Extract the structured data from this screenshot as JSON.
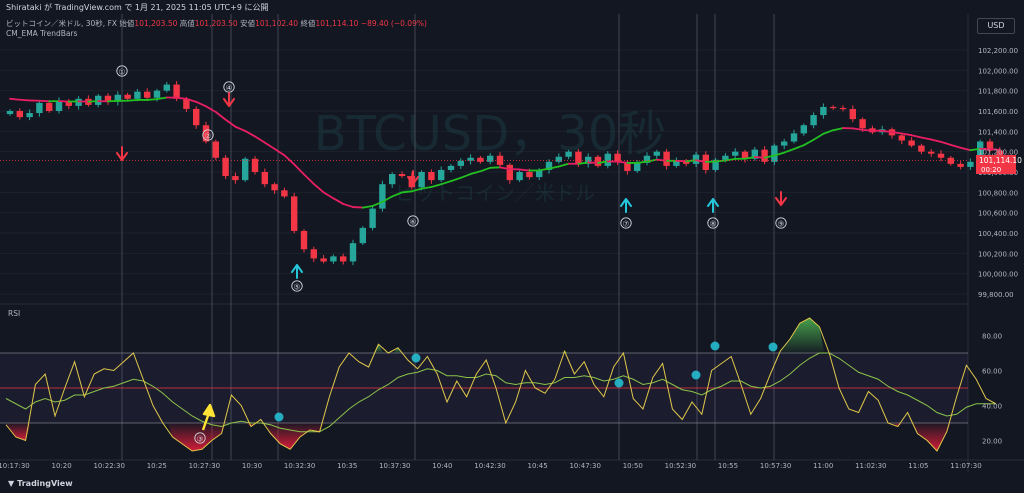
{
  "header": {
    "publish_line": "Shirataki が TradingView.com で 1月 21, 2025 11:05 UTC+9 に公開",
    "symbol": "ビットコイン／米ドル, 30秒, FX",
    "open_label": "始値",
    "open": "101,203.50",
    "high_label": "高値",
    "high": "101,203.50",
    "low_label": "安値",
    "low": "101,102.40",
    "close_label": "終値",
    "close": "101,114.10",
    "change": "−89.40 (−0.09%)",
    "indicator": "CM_EMA TrendBars",
    "currency_button": "USD",
    "rsi_label": "RSI",
    "brand": "TradingView"
  },
  "watermark": {
    "line1": "BTCUSD，30秒",
    "line2": "ビットコイン／米ドル"
  },
  "price_tag": {
    "price": "101,114.10",
    "countdown": "00:20"
  },
  "colors": {
    "up": "#26a69a",
    "down": "#f23645",
    "ema_up": "#22c021",
    "ema_down": "#e91e63",
    "rsi": "#e0c84a",
    "rsi_ma": "#8bc34a",
    "marker_blue": "#26c6da",
    "marker_yellow": "#ffe234"
  },
  "chart_data": [
    {
      "type": "candlestick",
      "title": "BTCUSD，30秒",
      "ylim": [
        99800,
        102200
      ],
      "y_ticks": [
        "102,200.00",
        "102,000.00",
        "101,800.00",
        "101,600.00",
        "101,400.00",
        "101,200.00",
        "101,000.00",
        "100,800.00",
        "100,600.00",
        "100,400.00",
        "100,200.00",
        "100,000.00",
        "99,800.00"
      ],
      "y_tick_values": [
        102200,
        102000,
        101800,
        101600,
        101400,
        101200,
        101000,
        100800,
        100600,
        100400,
        100200,
        100000,
        99800
      ],
      "x_ticks": [
        "10:17:30",
        "10:20",
        "10:22:30",
        "10:25",
        "10:27:30",
        "10:30",
        "10:32:30",
        "10:35",
        "10:37:30",
        "10:40",
        "10:42:30",
        "10:45",
        "10:47:30",
        "10:50",
        "10:52:30",
        "10:55",
        "10:57:30",
        "11:00",
        "11:02:30",
        "11:05",
        "11:07:30"
      ],
      "closes": [
        101600,
        101540,
        101580,
        101680,
        101600,
        101700,
        101650,
        101720,
        101660,
        101750,
        101690,
        101760,
        101720,
        101790,
        101730,
        101800,
        101860,
        101720,
        101620,
        101460,
        101300,
        101140,
        100960,
        100920,
        101130,
        101000,
        100880,
        100820,
        100760,
        100420,
        100240,
        100150,
        100120,
        100170,
        100120,
        100300,
        100450,
        100640,
        100880,
        100980,
        100960,
        100850,
        101000,
        100920,
        101020,
        101060,
        101110,
        101140,
        101100,
        101160,
        101070,
        100920,
        101000,
        100950,
        101020,
        101100,
        101150,
        101200,
        101080,
        101150,
        101060,
        101180,
        101100,
        101010,
        101090,
        101160,
        101200,
        101060,
        101110,
        101080,
        101170,
        101020,
        101120,
        101160,
        101200,
        101130,
        101220,
        101100,
        101260,
        101300,
        101380,
        101460,
        101560,
        101640,
        101630,
        101620,
        101520,
        101430,
        101390,
        101420,
        101360,
        101310,
        101260,
        101200,
        101180,
        101140,
        101080,
        101050,
        101100,
        101300,
        101210,
        101114.1
      ],
      "ema": [
        101720,
        101711,
        101704,
        101701,
        101696,
        101697,
        101693,
        101695,
        101692,
        101697,
        101695,
        101700,
        101701,
        101709,
        101709,
        101717,
        101733,
        101731,
        101719,
        101690,
        101646,
        101590,
        101515,
        101445,
        101404,
        101350,
        101289,
        101227,
        101165,
        101075,
        100977,
        100883,
        100800,
        100741,
        100686,
        100655,
        100650,
        100666,
        100706,
        100760,
        100799,
        100810,
        100836,
        100852,
        100880,
        100910,
        100943,
        100980,
        101007,
        101041,
        101046,
        101028,
        101025,
        101014,
        101016,
        101033,
        101054,
        101081,
        101080,
        101094,
        101089,
        101103,
        101102,
        101089,
        101089,
        101102,
        101122,
        101110,
        101110,
        101105,
        101116,
        101099,
        101103,
        101113,
        101129,
        101130,
        101147,
        101140,
        101162,
        101191,
        101226,
        101264,
        101317,
        101376,
        101411,
        101432,
        101429,
        101414,
        101407,
        101405,
        101392,
        101379,
        101362,
        101339,
        101320,
        101296,
        101267,
        101239,
        101214,
        101229,
        101226,
        101218
      ],
      "annotations": [
        {
          "label": "①",
          "direction": "none"
        },
        {
          "label": "②",
          "direction": "none"
        },
        {
          "label": "④",
          "direction": "down"
        },
        {
          "label": "⑤",
          "direction": "up"
        },
        {
          "label": "⑥",
          "direction": "down"
        },
        {
          "label": "⑦",
          "direction": "up"
        },
        {
          "label": "⑧",
          "direction": "up"
        },
        {
          "label": "⑨",
          "direction": "down"
        }
      ]
    },
    {
      "type": "line",
      "title": "RSI",
      "ylim": [
        10,
        90
      ],
      "y_ticks": [
        "80.00",
        "60.00",
        "40.00",
        "20.00"
      ],
      "y_tick_values": [
        80,
        60,
        40,
        20
      ],
      "bands": [
        30,
        70
      ],
      "midline": 50,
      "series": [
        {
          "values": [
            29,
            22,
            20,
            52,
            58,
            34,
            50,
            65,
            45,
            58,
            61,
            60,
            65,
            70,
            55,
            40,
            30,
            22,
            18,
            14,
            15,
            20,
            24,
            46,
            40,
            28,
            32,
            24,
            18,
            15,
            22,
            26,
            25,
            45,
            62,
            70,
            65,
            62,
            75,
            70,
            73,
            66,
            61,
            68,
            58,
            42,
            54,
            45,
            58,
            66,
            50,
            30,
            42,
            60,
            50,
            47,
            55,
            71,
            58,
            65,
            52,
            45,
            62,
            70,
            44,
            38,
            56,
            64,
            38,
            32,
            42,
            35,
            60,
            64,
            68,
            52,
            35,
            44,
            58,
            71,
            78,
            87,
            90,
            85,
            70,
            50,
            38,
            36,
            48,
            43,
            30,
            28,
            36,
            24,
            20,
            14,
            25,
            45,
            63,
            55,
            44,
            41
          ]
        },
        {
          "values": [
            44,
            41,
            38,
            42,
            44,
            42,
            43,
            46,
            46,
            48,
            50,
            51,
            53,
            55,
            54,
            51,
            47,
            42,
            38,
            34,
            31,
            29,
            28,
            30,
            31,
            30,
            30,
            29,
            27,
            26,
            25,
            25,
            25,
            28,
            33,
            38,
            42,
            45,
            49,
            52,
            56,
            58,
            59,
            61,
            60,
            57,
            57,
            56,
            56,
            58,
            57,
            53,
            52,
            53,
            53,
            52,
            53,
            56,
            56,
            57,
            56,
            54,
            55,
            57,
            55,
            52,
            53,
            55,
            52,
            49,
            48,
            46,
            49,
            51,
            54,
            54,
            51,
            50,
            51,
            54,
            58,
            63,
            67,
            70,
            70,
            67,
            63,
            59,
            57,
            55,
            51,
            48,
            46,
            43,
            40,
            36,
            34,
            35,
            39,
            41,
            41,
            41
          ]
        }
      ],
      "markers": [
        {
          "label": "③",
          "direction": "up"
        }
      ]
    }
  ]
}
